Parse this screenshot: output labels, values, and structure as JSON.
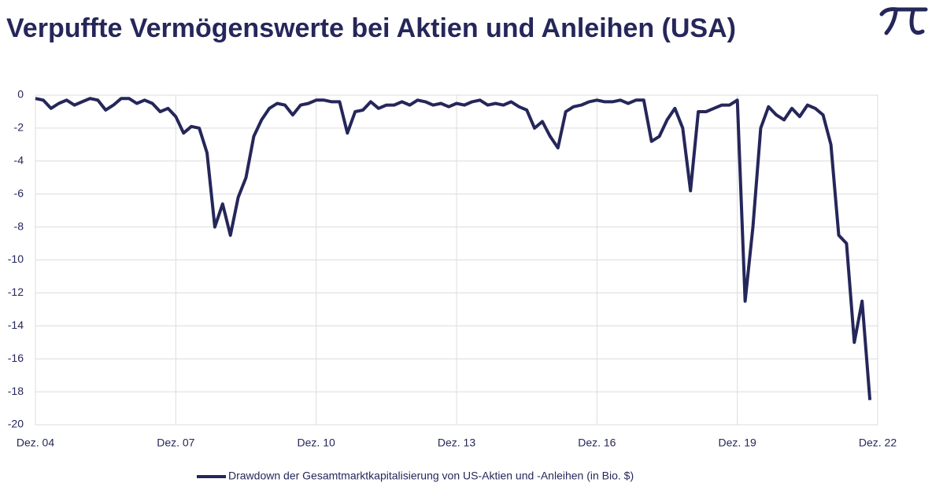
{
  "chart_data": {
    "type": "line",
    "title": "Verpuffte Vermögenswerte bei Aktien und Anleihen (USA)",
    "categories": [
      "Dez. 04",
      null,
      null,
      null,
      null,
      null,
      null,
      null,
      null,
      null,
      null,
      null,
      null,
      null,
      null,
      null,
      null,
      null,
      "Dez. 07",
      null,
      null,
      null,
      null,
      null,
      null,
      null,
      null,
      null,
      null,
      null,
      null,
      null,
      null,
      null,
      null,
      null,
      "Dez. 10",
      null,
      null,
      null,
      null,
      null,
      null,
      null,
      null,
      null,
      null,
      null,
      null,
      null,
      null,
      null,
      null,
      null,
      "Dez. 13",
      null,
      null,
      null,
      null,
      null,
      null,
      null,
      null,
      null,
      null,
      null,
      null,
      null,
      null,
      null,
      null,
      null,
      "Dez. 16",
      null,
      null,
      null,
      null,
      null,
      null,
      null,
      null,
      null,
      null,
      null,
      null,
      null,
      null,
      null,
      null,
      null,
      "Dez. 19",
      null,
      null,
      null,
      null,
      null,
      null,
      null,
      null,
      null,
      null,
      null,
      null,
      null,
      null,
      null,
      null,
      null,
      "Dez. 22"
    ],
    "series": [
      {
        "name": "Drawdown der Gesamtmarktkapitalisierung von US-Aktien und -Anleihen (in Bio. $)",
        "color": "#25275a",
        "values": [
          -0.2,
          -0.3,
          -0.8,
          -0.5,
          -0.3,
          -0.6,
          -0.4,
          -0.2,
          -0.3,
          -0.9,
          -0.6,
          -0.2,
          -0.2,
          -0.5,
          -0.3,
          -0.5,
          -1.0,
          -0.8,
          -1.3,
          -2.3,
          -1.9,
          -2.0,
          -3.5,
          -8.0,
          -6.6,
          -8.5,
          -6.2,
          -5.0,
          -2.5,
          -1.5,
          -0.8,
          -0.5,
          -0.6,
          -1.2,
          -0.6,
          -0.5,
          -0.3,
          -0.3,
          -0.4,
          -0.4,
          -2.3,
          -1.0,
          -0.9,
          -0.4,
          -0.8,
          -0.6,
          -0.6,
          -0.4,
          -0.6,
          -0.3,
          -0.4,
          -0.6,
          -0.5,
          -0.7,
          -0.5,
          -0.6,
          -0.4,
          -0.3,
          -0.6,
          -0.5,
          -0.6,
          -0.4,
          -0.7,
          -0.9,
          -2.0,
          -1.6,
          -2.5,
          -3.2,
          -1.0,
          -0.7,
          -0.6,
          -0.4,
          -0.3,
          -0.4,
          -0.4,
          -0.3,
          -0.5,
          -0.3,
          -0.3,
          -2.8,
          -2.5,
          -1.5,
          -0.8,
          -2.0,
          -5.8,
          -1.0,
          -1.0,
          -0.8,
          -0.6,
          -0.6,
          -0.3,
          -12.5,
          -8.0,
          -2.0,
          -0.7,
          -1.2,
          -1.5,
          -0.8,
          -1.3,
          -0.6,
          -0.8,
          -1.2,
          -3.0,
          -8.5,
          -9.0,
          -15.0,
          -12.5,
          -18.5,
          null
        ]
      }
    ],
    "ylim": [
      -20,
      0
    ],
    "yticks": [
      0,
      -2,
      -4,
      -6,
      -8,
      -10,
      -12,
      -14,
      -16,
      -18,
      -20
    ],
    "grid": true
  }
}
